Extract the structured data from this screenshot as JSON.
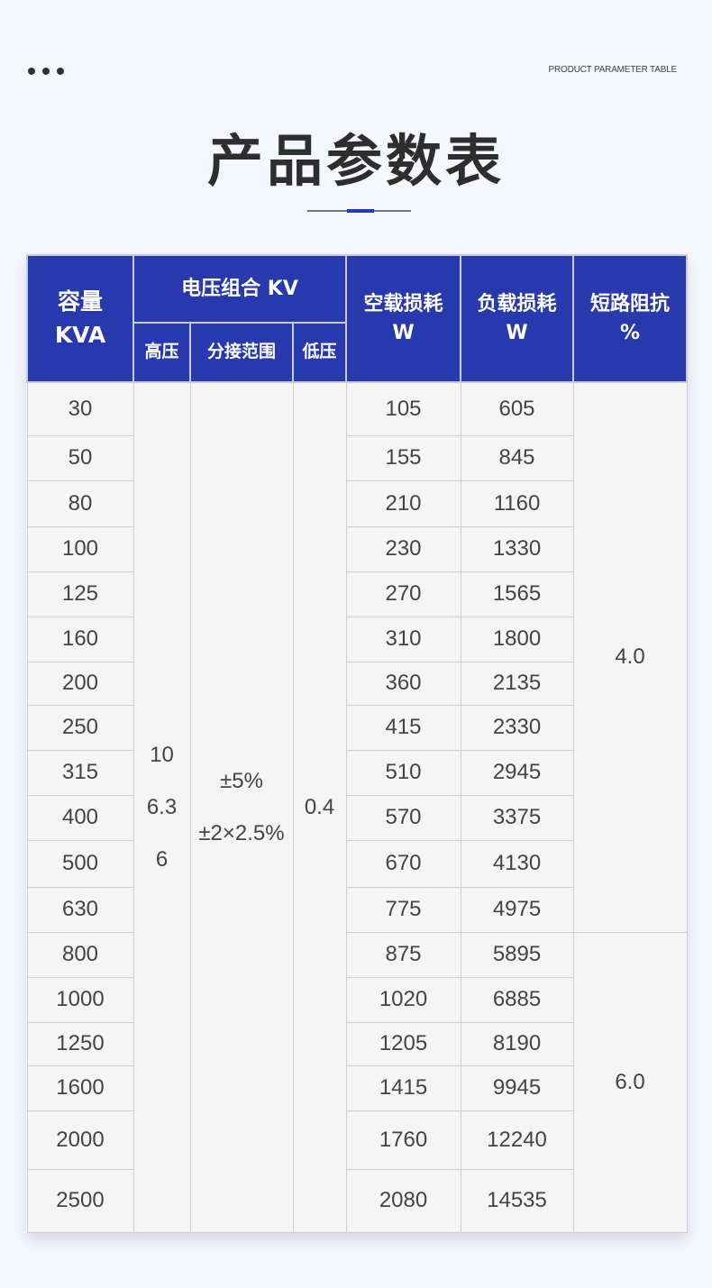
{
  "header": {
    "dots_icon": "more-dots-icon",
    "subtitle": "PRODUCT PARAMETER TABLE",
    "title": "产品参数表",
    "accent": "#2838ad"
  },
  "table": {
    "headers": {
      "capacity": [
        "容量",
        "KVA"
      ],
      "voltage_group": "电压组合 KV",
      "high": "高压",
      "tap": "分接范围",
      "low": "低压",
      "no_load": [
        "空载损耗",
        "W"
      ],
      "load": [
        "负载损耗",
        "W"
      ],
      "impedance": [
        "短路阻抗",
        "%"
      ]
    },
    "high_values": [
      "10",
      "6.3",
      "6"
    ],
    "tap_values": [
      "±5%",
      "±2×2.5%"
    ],
    "low_value": "0.4",
    "impedance_values": [
      "4.0",
      "6.0"
    ],
    "rows": [
      {
        "kva": "30",
        "no_load": "105",
        "load": "605"
      },
      {
        "kva": "50",
        "no_load": "155",
        "load": "845"
      },
      {
        "kva": "80",
        "no_load": "210",
        "load": "1160"
      },
      {
        "kva": "100",
        "no_load": "230",
        "load": "1330"
      },
      {
        "kva": "125",
        "no_load": "270",
        "load": "1565"
      },
      {
        "kva": "160",
        "no_load": "310",
        "load": "1800"
      },
      {
        "kva": "200",
        "no_load": "360",
        "load": "2135"
      },
      {
        "kva": "250",
        "no_load": "415",
        "load": "2330"
      },
      {
        "kva": "315",
        "no_load": "510",
        "load": "2945"
      },
      {
        "kva": "400",
        "no_load": "570",
        "load": "3375"
      },
      {
        "kva": "500",
        "no_load": "670",
        "load": "4130"
      },
      {
        "kva": "630",
        "no_load": "775",
        "load": "4975"
      },
      {
        "kva": "800",
        "no_load": "875",
        "load": "5895"
      },
      {
        "kva": "1000",
        "no_load": "1020",
        "load": "6885"
      },
      {
        "kva": "1250",
        "no_load": "1205",
        "load": "8190"
      },
      {
        "kva": "1600",
        "no_load": "1415",
        "load": "9945"
      },
      {
        "kva": "2000",
        "no_load": "1760",
        "load": "12240"
      },
      {
        "kva": "2500",
        "no_load": "2080",
        "load": "14535"
      }
    ]
  }
}
